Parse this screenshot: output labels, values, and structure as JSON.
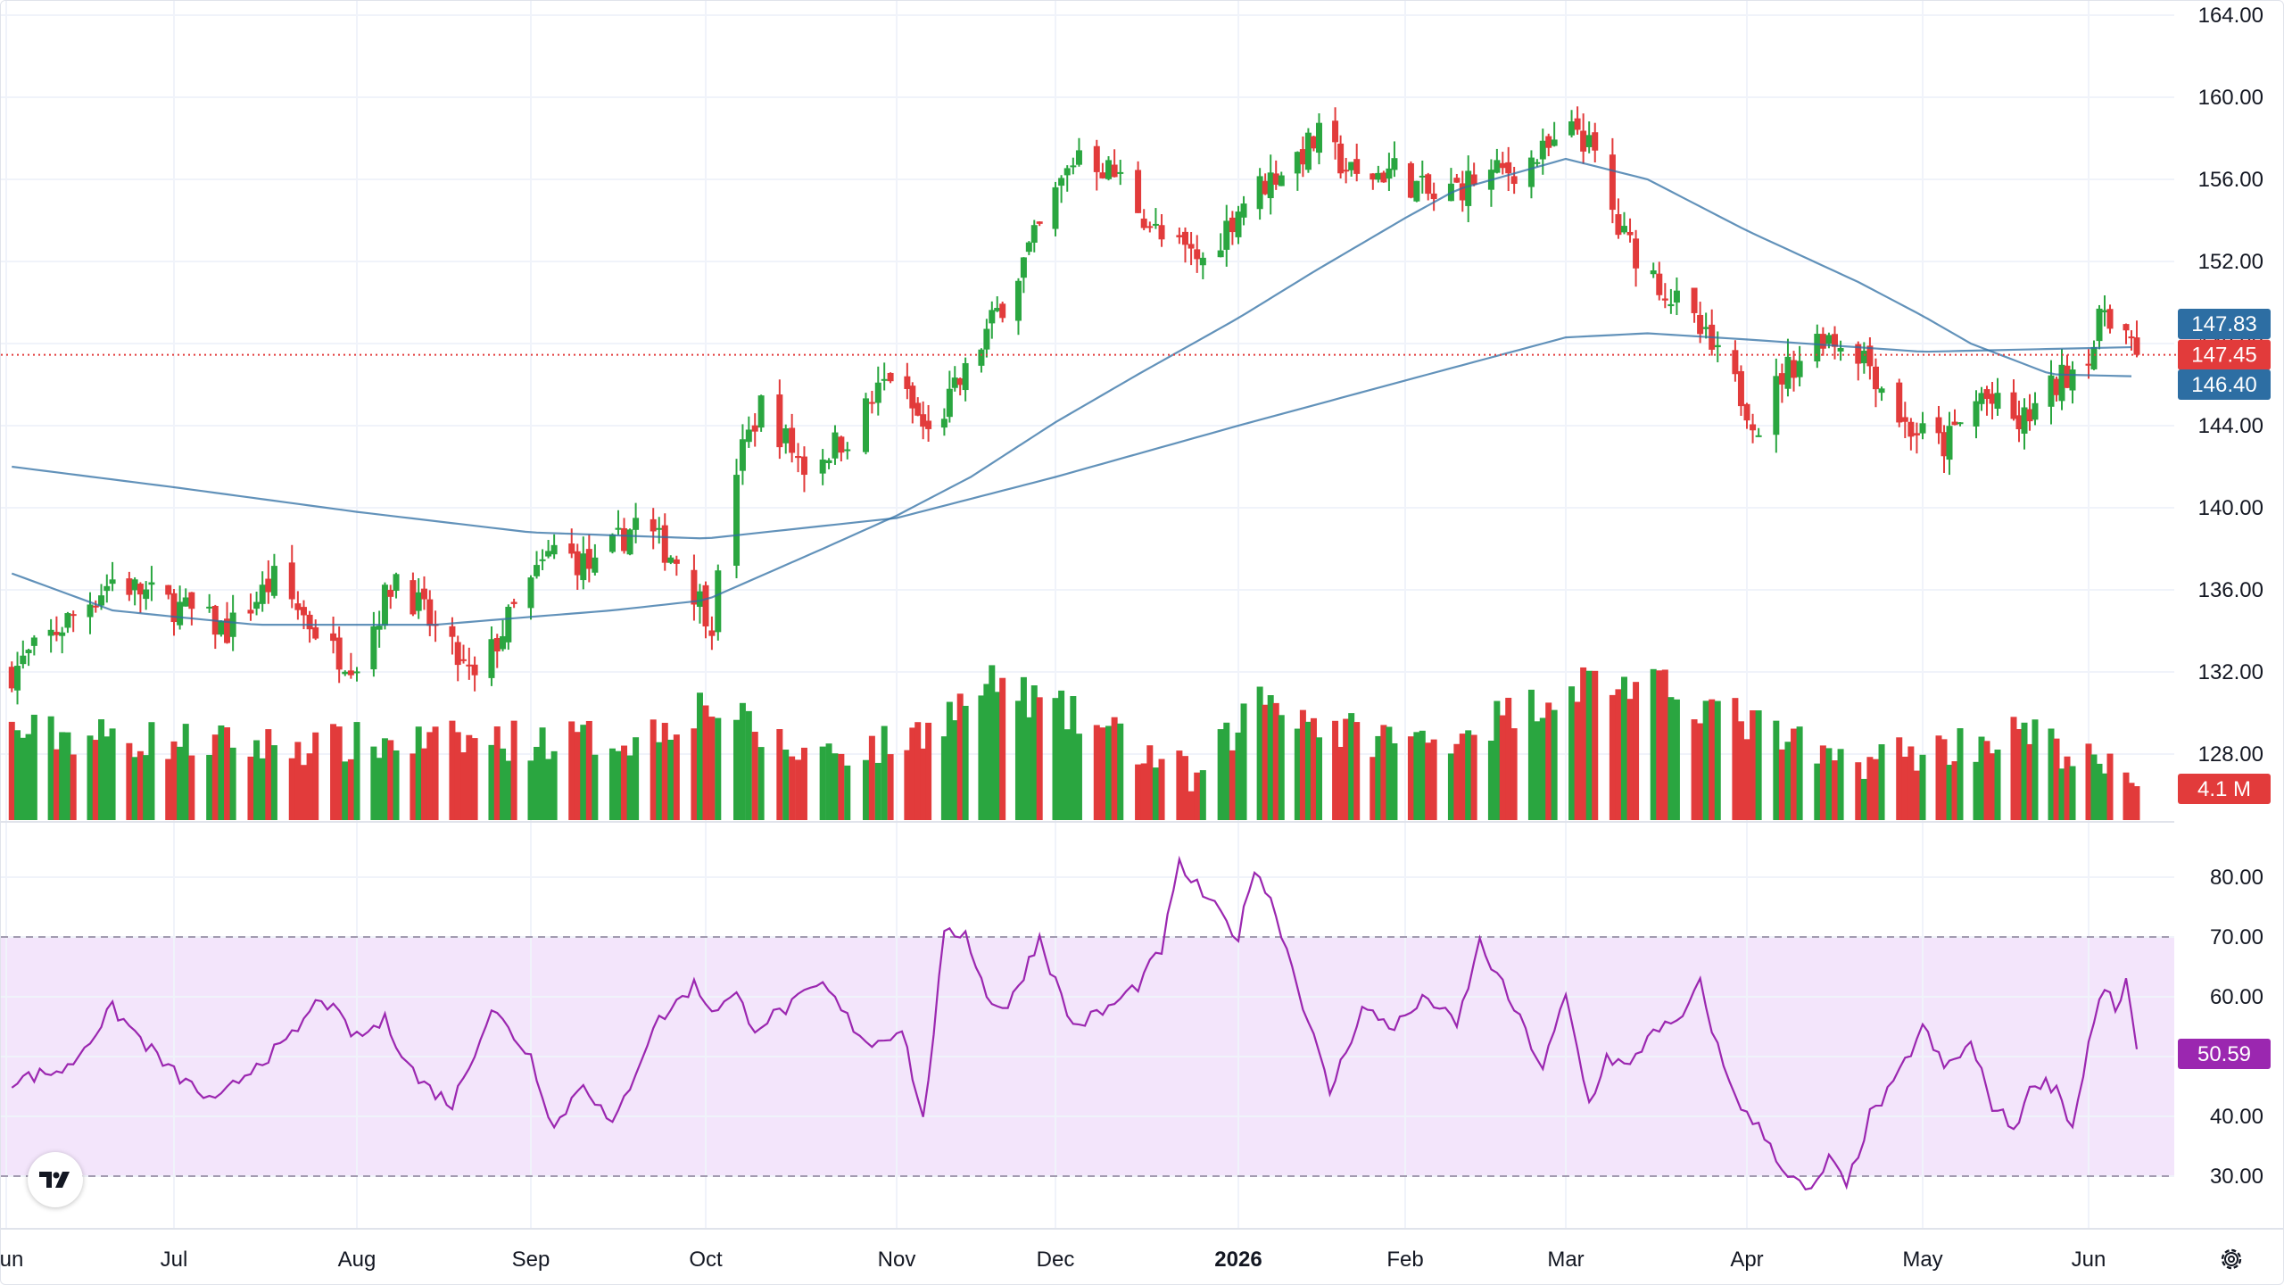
{
  "chart_data": [
    {
      "type": "candlestick",
      "title": "",
      "x_tick_labels": [
        "Jun",
        "Jul",
        "Aug",
        "Sep",
        "Oct",
        "Nov",
        "Dec",
        "2026",
        "Feb",
        "Mar",
        "Apr",
        "May",
        "Jun"
      ],
      "y_tick_labels": [
        "164.00",
        "160.00",
        "156.00",
        "152.00",
        "148.00",
        "144.00",
        "140.00",
        "136.00",
        "132.00",
        "128.00"
      ],
      "ylim": [
        124.5,
        164.5
      ],
      "last_price": 147.45,
      "last_price_label": "147.45",
      "price_trend": [
        [
          "2025-06-02",
          132
        ],
        [
          "2025-06-20",
          136.5
        ],
        [
          "2025-07-03",
          135
        ],
        [
          "2025-07-10",
          134
        ],
        [
          "2025-07-18",
          136.5
        ],
        [
          "2025-07-28",
          133
        ],
        [
          "2025-08-01",
          132.5
        ],
        [
          "2025-08-08",
          136.8
        ],
        [
          "2025-08-15",
          134
        ],
        [
          "2025-08-22",
          131.5
        ],
        [
          "2025-08-29",
          135
        ],
        [
          "2025-09-05",
          138
        ],
        [
          "2025-09-12",
          137
        ],
        [
          "2025-09-19",
          139.3
        ],
        [
          "2025-09-26",
          137.5
        ],
        [
          "2025-10-02",
          134.5
        ],
        [
          "2025-10-06",
          142
        ],
        [
          "2025-10-10",
          145
        ],
        [
          "2025-10-17",
          142
        ],
        [
          "2025-10-24",
          143.5
        ],
        [
          "2025-10-31",
          146.5
        ],
        [
          "2025-11-07",
          143.5
        ],
        [
          "2025-11-14",
          146.5
        ],
        [
          "2025-11-21",
          150
        ],
        [
          "2025-11-28",
          153.5
        ],
        [
          "2025-12-05",
          157.5
        ],
        [
          "2025-12-12",
          156
        ],
        [
          "2025-12-19",
          153
        ],
        [
          "2025-12-26",
          152
        ],
        [
          "2026-01-02",
          155
        ],
        [
          "2026-01-09",
          156.5
        ],
        [
          "2026-01-16",
          158
        ],
        [
          "2026-01-23",
          156
        ],
        [
          "2026-01-30",
          156.5
        ],
        [
          "2026-02-06",
          155
        ],
        [
          "2026-02-13",
          156
        ],
        [
          "2026-02-20",
          156.5
        ],
        [
          "2026-02-27",
          157.5
        ],
        [
          "2026-03-03",
          158.5
        ],
        [
          "2026-03-06",
          157
        ],
        [
          "2026-03-10",
          153.5
        ],
        [
          "2026-03-17",
          151
        ],
        [
          "2026-03-24",
          148.5
        ],
        [
          "2026-03-31",
          145.5
        ],
        [
          "2026-04-03",
          144
        ],
        [
          "2026-04-07",
          146.5
        ],
        [
          "2026-04-14",
          148.5
        ],
        [
          "2026-04-21",
          147.5
        ],
        [
          "2026-04-28",
          144
        ],
        [
          "2026-05-05",
          143
        ],
        [
          "2026-05-12",
          145.5
        ],
        [
          "2026-05-19",
          144
        ],
        [
          "2026-05-26",
          146
        ],
        [
          "2026-06-02",
          148
        ],
        [
          "2026-06-04",
          149.8
        ],
        [
          "2026-06-08",
          148.5
        ],
        [
          "2026-06-10",
          147.45
        ]
      ],
      "moving_averages": [
        {
          "value_label": "147.83",
          "color": "#2d6ea3",
          "points": [
            [
              "2025-06-02",
              142
            ],
            [
              "2025-07-01",
              141
            ],
            [
              "2025-08-01",
              139.8
            ],
            [
              "2025-09-01",
              138.8
            ],
            [
              "2025-10-01",
              138.5
            ],
            [
              "2025-11-01",
              139.5
            ],
            [
              "2025-12-01",
              141.5
            ],
            [
              "2026-01-01",
              144
            ],
            [
              "2026-02-01",
              146.2
            ],
            [
              "2026-03-01",
              148.3
            ],
            [
              "2026-03-15",
              148.5
            ],
            [
              "2026-04-01",
              148.2
            ],
            [
              "2026-05-01",
              147.6
            ],
            [
              "2026-06-10",
              147.83
            ]
          ]
        },
        {
          "value_label": "146.40",
          "color": "#2d6ea3",
          "points": [
            [
              "2025-06-02",
              136.8
            ],
            [
              "2025-06-20",
              135
            ],
            [
              "2025-07-15",
              134.3
            ],
            [
              "2025-08-15",
              134.3
            ],
            [
              "2025-09-15",
              135
            ],
            [
              "2025-10-01",
              135.5
            ],
            [
              "2025-10-20",
              138
            ],
            [
              "2025-11-15",
              141.5
            ],
            [
              "2025-12-15",
              146.5
            ],
            [
              "2026-01-15",
              151.5
            ],
            [
              "2026-02-10",
              155.5
            ],
            [
              "2026-03-01",
              157
            ],
            [
              "2026-03-15",
              156
            ],
            [
              "2026-04-01",
              153.5
            ],
            [
              "2026-04-20",
              151
            ],
            [
              "2026-05-10",
              148
            ],
            [
              "2026-05-25",
              146.5
            ],
            [
              "2026-06-10",
              146.4
            ]
          ]
        }
      ],
      "colors": {
        "up": "#2aa640",
        "down": "#e23b3b",
        "price_line": "#e23b3b",
        "ma_badge": "#2d6ea3"
      },
      "volume": {
        "last_label": "4.1 M",
        "trend": [
          [
            "2025-06-02",
            0.45
          ],
          [
            "2025-07-15",
            0.38
          ],
          [
            "2025-08-15",
            0.4
          ],
          [
            "2025-09-20",
            0.42
          ],
          [
            "2025-10-01",
            0.6
          ],
          [
            "2025-10-15",
            0.35
          ],
          [
            "2025-11-01",
            0.38
          ],
          [
            "2025-11-20",
            0.7
          ],
          [
            "2025-12-10",
            0.45
          ],
          [
            "2025-12-25",
            0.2
          ],
          [
            "2026-01-05",
            0.65
          ],
          [
            "2026-01-20",
            0.45
          ],
          [
            "2026-02-05",
            0.4
          ],
          [
            "2026-02-20",
            0.55
          ],
          [
            "2026-03-05",
            0.72
          ],
          [
            "2026-03-20",
            0.65
          ],
          [
            "2026-04-01",
            0.5
          ],
          [
            "2026-04-15",
            0.3
          ],
          [
            "2026-05-01",
            0.35
          ],
          [
            "2026-05-20",
            0.45
          ],
          [
            "2026-06-10",
            0.18
          ]
        ]
      }
    },
    {
      "type": "line",
      "title": "",
      "indicator": "RSI",
      "y_tick_labels": [
        "80.00",
        "70.00",
        "60.00",
        "50.00",
        "40.00",
        "30.00"
      ],
      "ylim": [
        25,
        85
      ],
      "band": [
        30,
        70
      ],
      "last_value_label": "50.59",
      "color": "#9b27b0",
      "band_color": "#f3e5fb",
      "points": [
        [
          "2025-06-02",
          46
        ],
        [
          "2025-06-12",
          48
        ],
        [
          "2025-06-20",
          58
        ],
        [
          "2025-06-30",
          48
        ],
        [
          "2025-07-08",
          42
        ],
        [
          "2025-07-15",
          49
        ],
        [
          "2025-07-20",
          52
        ],
        [
          "2025-07-26",
          60
        ],
        [
          "2025-08-01",
          53
        ],
        [
          "2025-08-06",
          56
        ],
        [
          "2025-08-12",
          46
        ],
        [
          "2025-08-18",
          42
        ],
        [
          "2025-08-25",
          58
        ],
        [
          "2025-09-01",
          50
        ],
        [
          "2025-09-05",
          38
        ],
        [
          "2025-09-10",
          46
        ],
        [
          "2025-09-15",
          38
        ],
        [
          "2025-09-22",
          55
        ],
        [
          "2025-09-29",
          62
        ],
        [
          "2025-10-02",
          58
        ],
        [
          "2025-10-06",
          60
        ],
        [
          "2025-10-09",
          55
        ],
        [
          "2025-10-14",
          58
        ],
        [
          "2025-10-20",
          62
        ],
        [
          "2025-10-25",
          55
        ],
        [
          "2025-10-28",
          52
        ],
        [
          "2025-11-02",
          55
        ],
        [
          "2025-11-06",
          39
        ],
        [
          "2025-11-10",
          70
        ],
        [
          "2025-11-14",
          71
        ],
        [
          "2025-11-18",
          60
        ],
        [
          "2025-11-22",
          58
        ],
        [
          "2025-11-28",
          70
        ],
        [
          "2025-12-04",
          55
        ],
        [
          "2025-12-10",
          58
        ],
        [
          "2025-12-15",
          62
        ],
        [
          "2025-12-19",
          68
        ],
        [
          "2025-12-22",
          82
        ],
        [
          "2025-12-27",
          76
        ],
        [
          "2026-01-01",
          70
        ],
        [
          "2026-01-04",
          82
        ],
        [
          "2026-01-08",
          74
        ],
        [
          "2026-01-12",
          62
        ],
        [
          "2026-01-18",
          44
        ],
        [
          "2026-01-24",
          58
        ],
        [
          "2026-01-30",
          55
        ],
        [
          "2026-02-05",
          60
        ],
        [
          "2026-02-10",
          55
        ],
        [
          "2026-02-14",
          69
        ],
        [
          "2026-02-20",
          58
        ],
        [
          "2026-02-25",
          48
        ],
        [
          "2026-03-01",
          60
        ],
        [
          "2026-03-05",
          42
        ],
        [
          "2026-03-08",
          50
        ],
        [
          "2026-03-12",
          48
        ],
        [
          "2026-03-16",
          55
        ],
        [
          "2026-03-20",
          55
        ],
        [
          "2026-03-24",
          62
        ],
        [
          "2026-03-28",
          48
        ],
        [
          "2026-04-01",
          40
        ],
        [
          "2026-04-04",
          37
        ],
        [
          "2026-04-08",
          30
        ],
        [
          "2026-04-12",
          27
        ],
        [
          "2026-04-15",
          33
        ],
        [
          "2026-04-18",
          28
        ],
        [
          "2026-04-22",
          40
        ],
        [
          "2026-04-26",
          45
        ],
        [
          "2026-05-01",
          55
        ],
        [
          "2026-05-05",
          48
        ],
        [
          "2026-05-10",
          52
        ],
        [
          "2026-05-14",
          42
        ],
        [
          "2026-05-18",
          38
        ],
        [
          "2026-05-22",
          46
        ],
        [
          "2026-05-26",
          45
        ],
        [
          "2026-05-29",
          38
        ],
        [
          "2026-06-01",
          52
        ],
        [
          "2026-06-04",
          62
        ],
        [
          "2026-06-06",
          57
        ],
        [
          "2026-06-08",
          63
        ],
        [
          "2026-06-10",
          50.59
        ]
      ]
    }
  ],
  "icons": {
    "logo": "tradingview-logo-icon",
    "settings": "gear-icon"
  }
}
